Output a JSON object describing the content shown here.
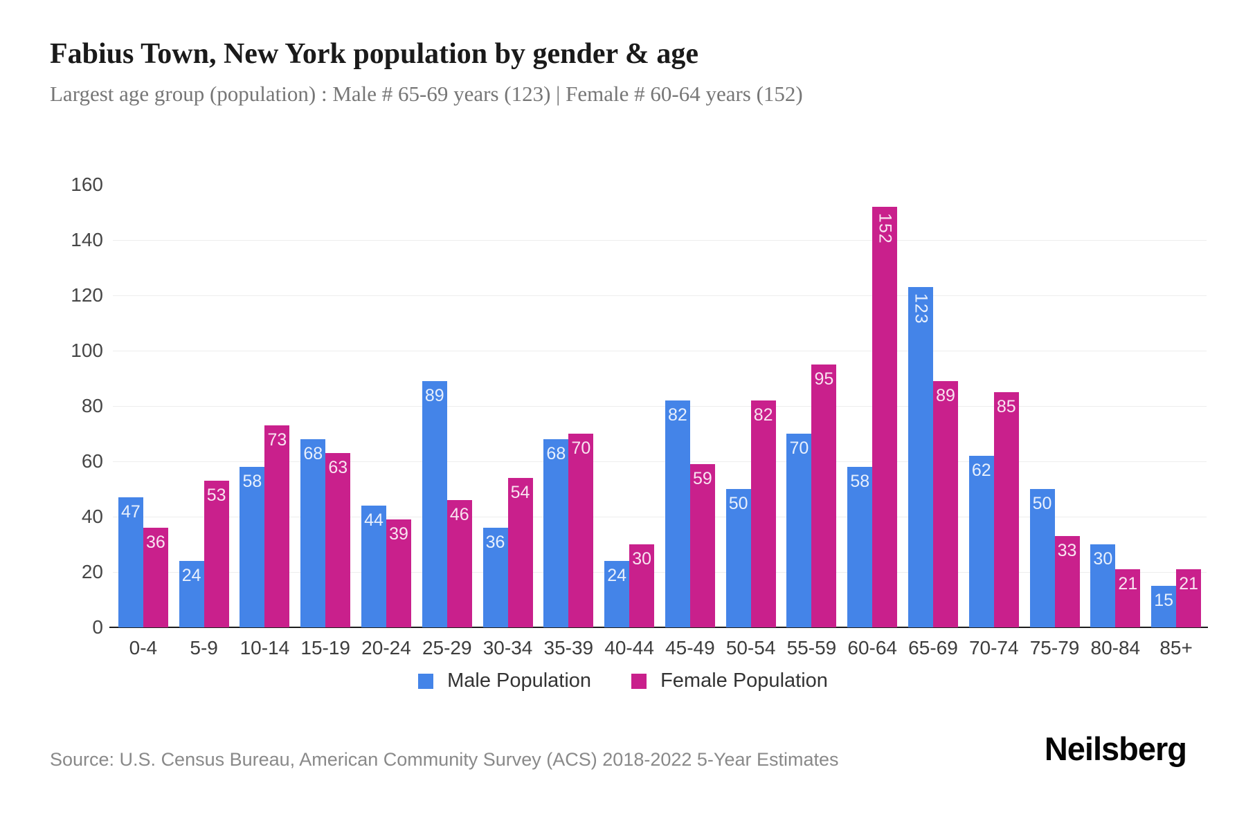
{
  "header": {
    "title": "Fabius Town, New York population by gender & age",
    "subtitle": "Largest age group (population) : Male # 65-69 years (123) | Female # 60-64 years (152)"
  },
  "chart_data": {
    "type": "bar",
    "title": "Fabius Town, New York population by gender & age",
    "categories": [
      "0-4",
      "5-9",
      "10-14",
      "15-19",
      "20-24",
      "25-29",
      "30-34",
      "35-39",
      "40-44",
      "45-49",
      "50-54",
      "55-59",
      "60-64",
      "65-69",
      "70-74",
      "75-79",
      "80-84",
      "85+"
    ],
    "series": [
      {
        "name": "Male Population",
        "color": "#4484e8",
        "values": [
          47,
          24,
          58,
          68,
          44,
          89,
          36,
          68,
          24,
          82,
          50,
          70,
          58,
          123,
          62,
          50,
          30,
          15
        ]
      },
      {
        "name": "Female Population",
        "color": "#c9208c",
        "values": [
          36,
          53,
          73,
          63,
          39,
          46,
          54,
          70,
          30,
          59,
          82,
          95,
          152,
          89,
          85,
          33,
          21,
          21
        ]
      }
    ],
    "xlabel": "",
    "ylabel": "",
    "ylim": [
      0,
      160
    ],
    "ytick_step": 20,
    "grid": "horizontal",
    "legend_position": "bottom",
    "bar_value_labels": "inside-top, white, rotated vertical when value has 3 digits"
  },
  "colors": {
    "male": "#4484e8",
    "female": "#c9208c",
    "gridline": "#ededed",
    "axis": "#1c1c1c"
  },
  "footer": {
    "source": "Source: U.S. Census Bureau, American Community Survey (ACS) 2018-2022 5-Year Estimates",
    "brand": "Neilsberg"
  }
}
